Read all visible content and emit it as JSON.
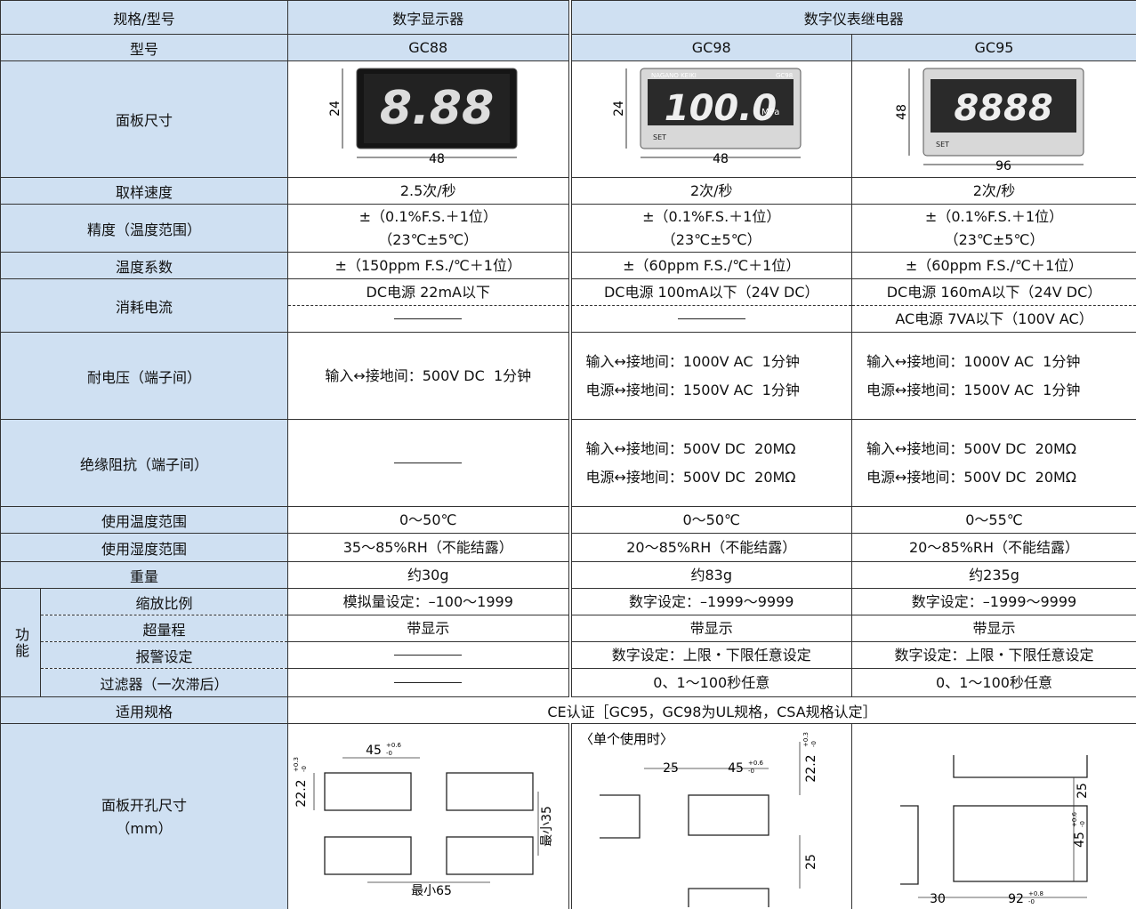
{
  "header": {
    "spec": "规格/型号",
    "display": "数字显示器",
    "relay": "数字仪表继电器"
  },
  "models": {
    "label": "型号",
    "values": [
      "GC88",
      "GC98",
      "GC95"
    ]
  },
  "panel": {
    "label": "面板尺寸",
    "items": [
      {
        "height": "24",
        "width": "48",
        "display": "8.88"
      },
      {
        "height": "24",
        "width": "48",
        "display": "100.0",
        "unit": "MPa",
        "brand": "NAGANO KEIKI",
        "model": "GC98",
        "button": "SET"
      },
      {
        "height": "48",
        "width": "96",
        "display": "8888",
        "button": "SET"
      }
    ]
  },
  "rows": [
    {
      "label": "取样速度",
      "values": [
        [
          "2.5次/秒"
        ],
        [
          "2次/秒"
        ],
        [
          "2次/秒"
        ]
      ]
    },
    {
      "label": "精度（温度范围）",
      "values": [
        [
          "±（0.1%F.S.＋1位）",
          "（23℃±5℃）"
        ],
        [
          "±（0.1%F.S.＋1位）",
          "（23℃±5℃）"
        ],
        [
          "±（0.1%F.S.＋1位）",
          "（23℃±5℃）"
        ]
      ]
    },
    {
      "label": "温度系数",
      "values": [
        [
          "±（150ppm F.S./℃＋1位）"
        ],
        [
          "±（60ppm F.S./℃＋1位）"
        ],
        [
          "±（60ppm F.S./℃＋1位）"
        ]
      ]
    },
    {
      "label": "消耗电流",
      "values": [
        [
          "DC电源 22mA以下"
        ],
        [
          "DC电源 100mA以下（24V DC）"
        ],
        [
          "DC电源 160mA以下（24V DC）",
          "AC电源 7VA以下（100V AC）"
        ]
      ]
    },
    {
      "label": "耐电压（端子间）",
      "values": [
        [
          "输入↔接地间：500V DC  1分钟"
        ],
        [
          "输入↔接地间：1000V AC  1分钟",
          "电源↔接地间：1500V AC  1分钟"
        ],
        [
          "输入↔接地间：1000V AC  1分钟",
          "电源↔接地间：1500V AC  1分钟"
        ]
      ]
    },
    {
      "label": "绝缘阻抗（端子间）",
      "values": [
        [],
        [
          "输入↔接地间：500V DC  20MΩ",
          "电源↔接地间：500V DC  20MΩ"
        ],
        [
          "输入↔接地间：500V DC  20MΩ",
          "电源↔接地间：500V DC  20MΩ"
        ]
      ]
    },
    {
      "label": "使用温度范围",
      "values": [
        [
          "0～50℃"
        ],
        [
          "0～50℃"
        ],
        [
          "0～55℃"
        ]
      ]
    },
    {
      "label": "使用湿度范围",
      "values": [
        [
          "35～85%RH（不能结露）"
        ],
        [
          "20～85%RH（不能结露）"
        ],
        [
          "20～85%RH（不能结露）"
        ]
      ]
    },
    {
      "label": "重量",
      "values": [
        [
          "约30g"
        ],
        [
          "约83g"
        ],
        [
          "约235g"
        ]
      ]
    }
  ],
  "function": {
    "label": "功能",
    "rows": [
      {
        "label": "缩放比例",
        "values": [
          [
            "模拟量设定：–100～1999"
          ],
          [
            "数字设定：–1999～9999"
          ],
          [
            "数字设定：–1999～9999"
          ]
        ]
      },
      {
        "label": "超量程",
        "values": [
          [
            "带显示"
          ],
          [
            "带显示"
          ],
          [
            "带显示"
          ]
        ]
      },
      {
        "label": "报警设定",
        "values": [
          [],
          [
            "数字设定：上限・下限任意设定"
          ],
          [
            "数字设定：上限・下限任意设定"
          ]
        ]
      },
      {
        "label": "过滤器（一次滞后）",
        "values": [
          [],
          [
            "0、1～100秒任意"
          ],
          [
            "0、1～100秒任意"
          ]
        ]
      }
    ]
  },
  "standard": {
    "label": "适用规格",
    "value": "CE认证［GC95，GC98为UL规格，CSA规格认定］"
  },
  "cutout": {
    "label": [
      "面板开孔尺寸",
      "（mm）"
    ],
    "diagrams": [
      {
        "labels": [
          {
            "text": "45",
            "tol": [
              "+0.6",
              "-0"
            ]
          },
          {
            "text": "22.2",
            "tol": [
              "+0.3",
              "-0"
            ]
          },
          {
            "text": "最小35"
          },
          {
            "text": "最小65"
          }
        ]
      },
      {
        "caption": "〈单个使用时〉",
        "labels": [
          {
            "text": "25"
          },
          {
            "text": "45",
            "tol": [
              "+0.6",
              "-0"
            ]
          },
          {
            "text": "22.2",
            "tol": [
              "+0.3",
              "-0"
            ]
          },
          {
            "text": "25"
          }
        ]
      },
      {
        "labels": [
          {
            "text": "25"
          },
          {
            "text": "45",
            "tol": [
              "+0.6",
              "-0"
            ]
          },
          {
            "text": "30"
          },
          {
            "text": "92",
            "tol": [
              "+0.8",
              "-0"
            ]
          }
        ]
      }
    ]
  }
}
